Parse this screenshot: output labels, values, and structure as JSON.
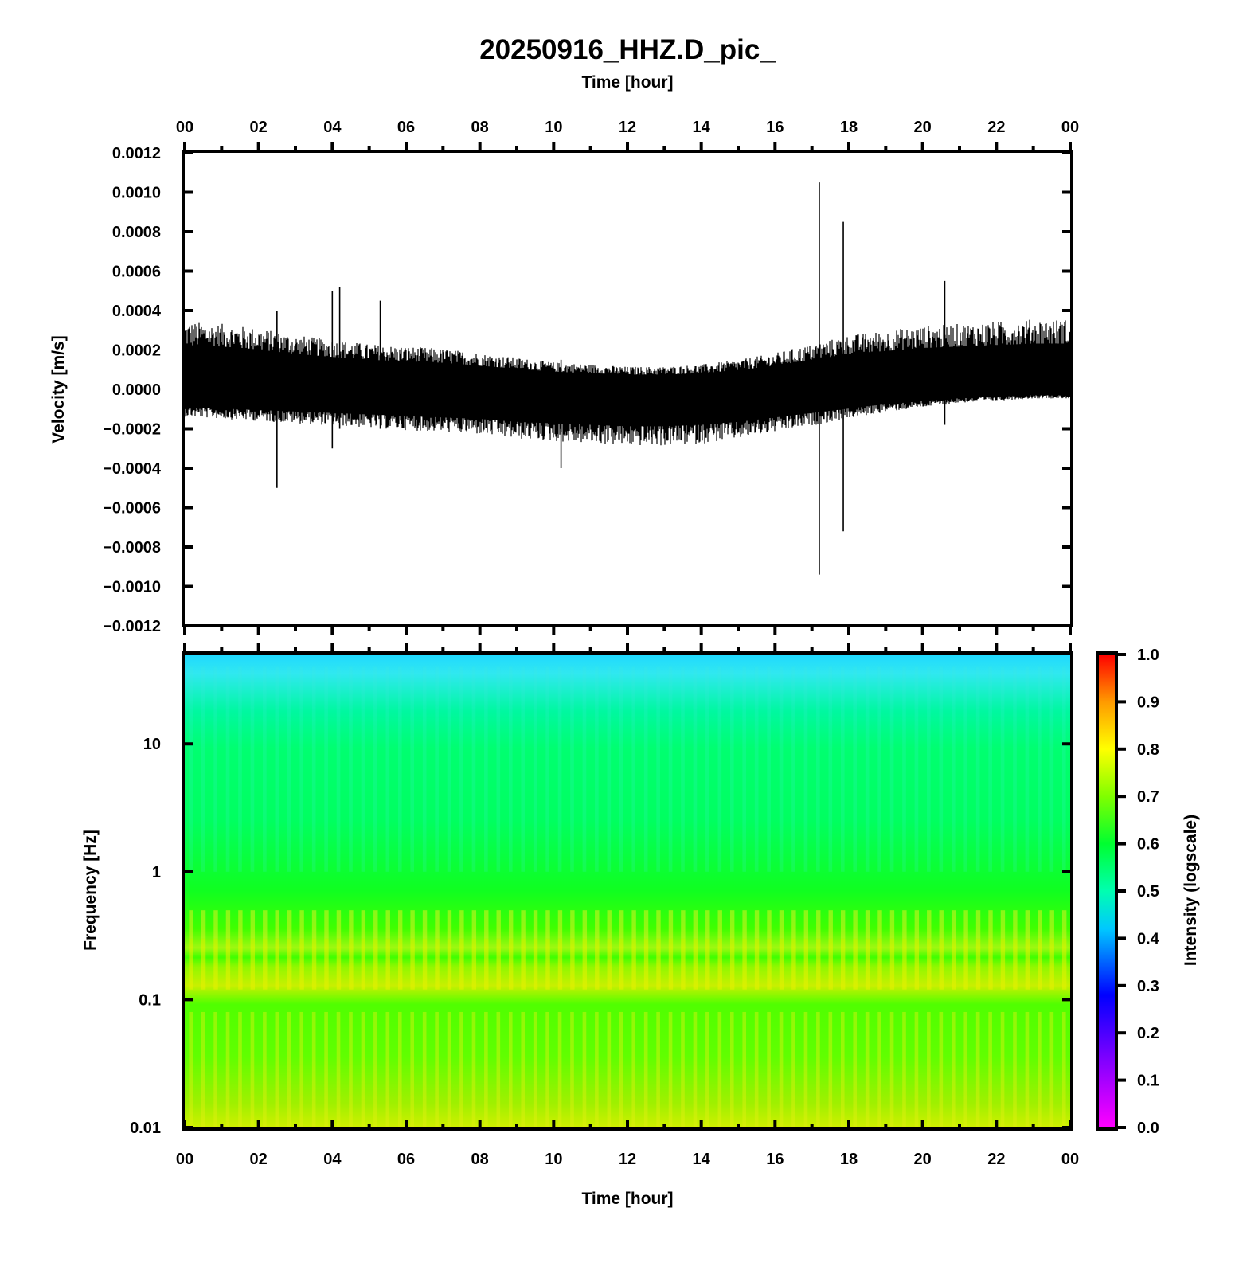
{
  "figure": {
    "title": "20250916_HHZ.D_pic_",
    "top_xlabel": "Time [hour]",
    "bottom_xlabel": "Time [hour]",
    "time_tick_labels": [
      "00",
      "02",
      "04",
      "06",
      "08",
      "10",
      "12",
      "14",
      "16",
      "18",
      "20",
      "22",
      "00"
    ]
  },
  "chart_data": [
    {
      "type": "line",
      "title": "",
      "xlabel": "Time [hour]",
      "ylabel": "Velocity [m/s]",
      "xlim": [
        0,
        24
      ],
      "ylim": [
        -0.0012,
        0.0012
      ],
      "y_tick_labels": [
        "0.0012",
        "0.0010",
        "0.0008",
        "0.0006",
        "0.0004",
        "0.0002",
        "0.0000",
        "−0.0002",
        "−0.0004",
        "−0.0006",
        "−0.0008",
        "−0.0010",
        "−0.0012"
      ],
      "y_tick_values": [
        0.0012,
        0.001,
        0.0008,
        0.0006,
        0.0004,
        0.0002,
        0.0,
        -0.0002,
        -0.0004,
        -0.0006,
        -0.0008,
        -0.001,
        -0.0012
      ],
      "series": [
        {
          "color": "#000000",
          "envelope_x_hours": [
            0,
            1,
            2,
            3,
            4,
            5,
            6,
            7,
            8,
            9,
            10,
            11,
            12,
            13,
            14,
            15,
            16,
            17,
            18,
            19,
            20,
            21,
            22,
            23,
            24
          ],
          "envelope_upper": [
            0.0003,
            0.00029,
            0.00027,
            0.00024,
            0.00022,
            0.0002,
            0.00019,
            0.00018,
            0.00016,
            0.00014,
            0.00012,
            0.00011,
            0.0001,
            0.0001,
            0.00011,
            0.00013,
            0.00016,
            0.0002,
            0.00024,
            0.00026,
            0.00028,
            0.00029,
            0.0003,
            0.00031,
            0.00031
          ],
          "envelope_lower": [
            -0.00012,
            -0.00013,
            -0.00014,
            -0.00015,
            -0.00016,
            -0.00017,
            -0.00018,
            -0.00019,
            -0.0002,
            -0.00022,
            -0.00023,
            -0.00024,
            -0.00025,
            -0.00025,
            -0.00024,
            -0.00022,
            -0.00019,
            -0.00016,
            -0.00013,
            -0.0001,
            -8e-05,
            -6e-05,
            -5e-05,
            -4e-05,
            -4e-05
          ],
          "spikes": [
            {
              "t": 2.5,
              "max": 0.0004,
              "min": -0.0005
            },
            {
              "t": 4.0,
              "max": 0.0005,
              "min": -0.0003
            },
            {
              "t": 4.2,
              "max": 0.00052,
              "min": -0.0002
            },
            {
              "t": 5.3,
              "max": 0.00045,
              "min": -0.0002
            },
            {
              "t": 10.2,
              "max": 0.00015,
              "min": -0.0004
            },
            {
              "t": 17.2,
              "max": 0.00105,
              "min": -0.00094
            },
            {
              "t": 17.85,
              "max": 0.00085,
              "min": -0.00072
            },
            {
              "t": 20.6,
              "max": 0.00055,
              "min": -0.00018
            }
          ]
        }
      ]
    },
    {
      "type": "heatmap",
      "title": "",
      "xlabel": "Time [hour]",
      "ylabel": "Frequency [Hz]",
      "xlim": [
        0,
        24
      ],
      "ylim": [
        0.01,
        50
      ],
      "y_scale": "log",
      "y_tick_labels": [
        "10",
        "1",
        "0.1",
        "0.01"
      ],
      "y_tick_values": [
        10,
        1,
        0.1,
        0.01
      ],
      "intensity_by_frequency": {
        "frequency_hz": [
          0.01,
          0.02,
          0.05,
          0.1,
          0.15,
          0.2,
          0.3,
          0.4,
          0.5,
          1,
          2,
          5,
          10,
          20,
          40,
          50
        ],
        "intensity": [
          0.7,
          0.68,
          0.66,
          0.62,
          0.64,
          0.7,
          0.64,
          0.68,
          0.62,
          0.56,
          0.52,
          0.54,
          0.56,
          0.52,
          0.45,
          0.42
        ]
      },
      "colorbar": {
        "label": "Intensity (logscale)",
        "range": [
          0,
          1
        ],
        "tick_labels": [
          "1.0",
          "0.9",
          "0.8",
          "0.7",
          "0.6",
          "0.5",
          "0.4",
          "0.3",
          "0.2",
          "0.1",
          "0.0"
        ],
        "tick_values": [
          1.0,
          0.9,
          0.8,
          0.7,
          0.6,
          0.5,
          0.4,
          0.3,
          0.2,
          0.1,
          0.0
        ],
        "colormap": "rainbow"
      }
    }
  ]
}
